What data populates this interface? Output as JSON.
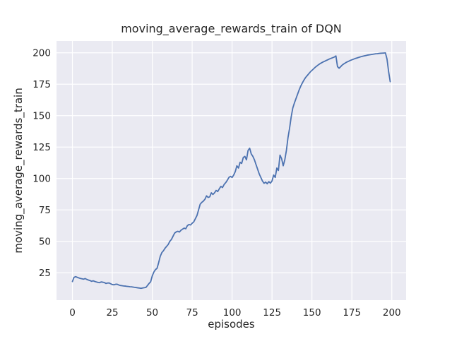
{
  "chart_data": {
    "type": "line",
    "title": "moving_average_rewards_train of DQN",
    "xlabel": "episodes",
    "ylabel": "moving_average_rewards_train",
    "x_ticks": [
      0,
      25,
      50,
      75,
      100,
      125,
      150,
      175,
      200
    ],
    "y_ticks": [
      25,
      50,
      75,
      100,
      125,
      150,
      175,
      200
    ],
    "xlim": [
      -9.95,
      208.95
    ],
    "ylim": [
      3.2,
      209.4
    ],
    "grid": true,
    "legend": false,
    "line_color": "#4c72b0",
    "plot_bg_color": "#eaeaf2",
    "grid_color": "#ffffff",
    "text_color": "#262626",
    "series": [
      {
        "name": "moving_average_rewards_train",
        "x_is_index": true,
        "values": [
          18.0,
          21.3,
          21.9,
          21.4,
          20.9,
          20.5,
          20.2,
          19.9,
          20.4,
          19.7,
          19.2,
          18.8,
          18.2,
          18.6,
          18.1,
          17.7,
          17.3,
          17.1,
          17.7,
          17.5,
          17.2,
          16.5,
          16.8,
          16.9,
          16.2,
          15.6,
          15.4,
          15.8,
          15.9,
          15.3,
          14.9,
          14.7,
          14.5,
          14.4,
          14.2,
          14.1,
          13.9,
          13.8,
          13.6,
          13.4,
          13.2,
          13.0,
          12.8,
          12.6,
          12.9,
          13.1,
          13.3,
          14.8,
          16.5,
          17.8,
          22.5,
          25.5,
          27.5,
          28.5,
          33.0,
          38.0,
          41.0,
          42.5,
          44.5,
          46.0,
          47.5,
          50.0,
          51.5,
          54.0,
          56.5,
          57.5,
          58.0,
          57.4,
          58.8,
          59.7,
          60.5,
          60.0,
          62.5,
          63.4,
          63.0,
          64.4,
          65.5,
          68.0,
          70.5,
          75.0,
          79.5,
          81.0,
          82.0,
          83.5,
          86.2,
          84.9,
          85.4,
          88.6,
          87.3,
          88.6,
          90.5,
          89.6,
          91.8,
          93.7,
          92.8,
          95.2,
          96.7,
          98.6,
          100.8,
          101.7,
          100.8,
          102.7,
          105.5,
          110.1,
          108.3,
          112.9,
          112.0,
          116.7,
          117.6,
          114.8,
          122.3,
          124.1,
          119.5,
          117.6,
          114.8,
          111.0,
          107.3,
          103.6,
          100.8,
          98.0,
          96.2,
          97.1,
          95.8,
          97.5,
          96.3,
          98.0,
          102.7,
          100.8,
          108.3,
          106.4,
          118.6,
          115.8,
          110.1,
          114.8,
          122.3,
          132.5,
          140.0,
          149.0,
          156.0,
          160.0,
          163.5,
          167.0,
          170.5,
          173.5,
          176.0,
          178.3,
          180.3,
          181.8,
          183.3,
          184.8,
          186.0,
          187.2,
          188.4,
          189.4,
          190.4,
          191.3,
          192.0,
          192.7,
          193.3,
          193.9,
          194.5,
          195.1,
          195.6,
          196.1,
          196.6,
          197.5,
          189.0,
          187.7,
          189.0,
          190.3,
          191.2,
          192.0,
          192.7,
          193.3,
          193.9,
          194.4,
          194.9,
          195.4,
          195.8,
          196.2,
          196.6,
          197.0,
          197.3,
          197.6,
          197.9,
          198.2,
          198.4,
          198.6,
          198.8,
          199.0,
          199.2,
          199.3,
          199.5,
          199.6,
          199.7,
          199.8,
          199.9,
          195.0,
          185.0,
          177.0
        ]
      }
    ]
  }
}
